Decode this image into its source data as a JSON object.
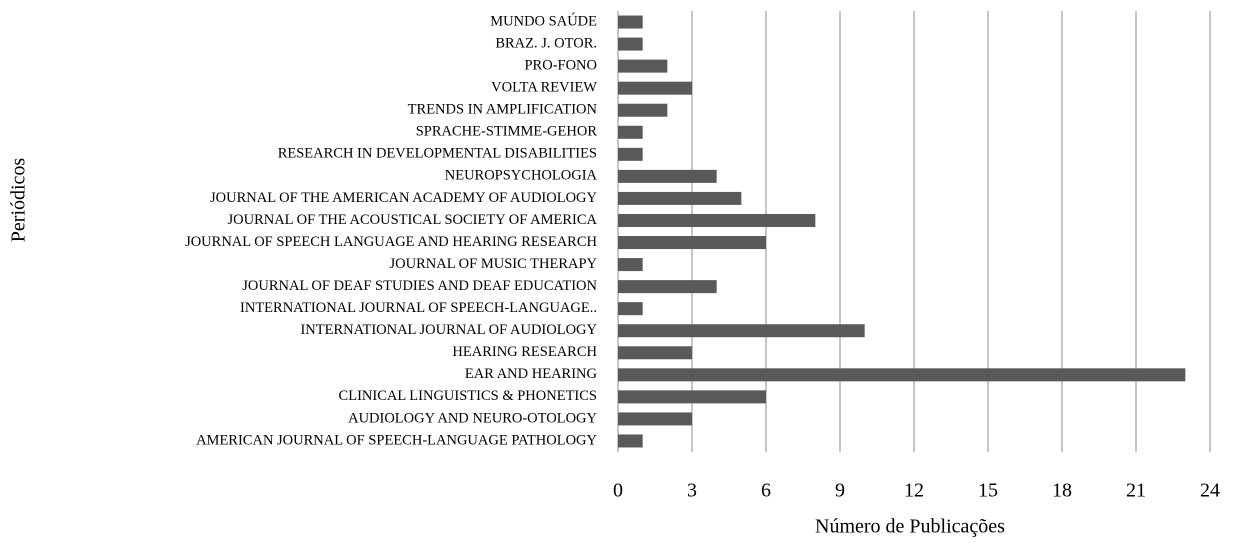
{
  "chart_data": {
    "type": "barh",
    "xlabel": "Número de Publicações",
    "ylabel": "Periódicos",
    "categories": [
      "MUNDO SAÚDE",
      "BRAZ. J. OTOR.",
      "PRO-FONO",
      "VOLTA REVIEW",
      "TRENDS IN AMPLIFICATION",
      "SPRACHE-STIMME-GEHOR",
      "RESEARCH IN DEVELOPMENTAL DISABILITIES",
      "NEUROPSYCHOLOGIA",
      "JOURNAL OF THE AMERICAN ACADEMY OF AUDIOLOGY",
      "JOURNAL OF THE ACOUSTICAL SOCIETY OF AMERICA",
      "JOURNAL OF SPEECH LANGUAGE AND HEARING RESEARCH",
      "JOURNAL OF MUSIC THERAPY",
      "JOURNAL OF DEAF STUDIES AND DEAF EDUCATION",
      "INTERNATIONAL JOURNAL OF SPEECH-LANGUAGE..",
      "INTERNATIONAL JOURNAL OF AUDIOLOGY",
      "HEARING RESEARCH",
      "EAR AND HEARING",
      "CLINICAL LINGUISTICS & PHONETICS",
      "AUDIOLOGY AND NEURO-OTOLOGY",
      "AMERICAN JOURNAL OF SPEECH-LANGUAGE PATHOLOGY"
    ],
    "values": [
      1,
      1,
      2,
      3,
      2,
      1,
      1,
      4,
      5,
      8,
      6,
      1,
      4,
      1,
      10,
      3,
      23,
      6,
      3,
      1
    ],
    "color": "#595959",
    "xlim": [
      0,
      24
    ],
    "xticks": [
      0,
      3,
      6,
      9,
      12,
      15,
      18,
      21,
      24
    ],
    "grid": true
  }
}
